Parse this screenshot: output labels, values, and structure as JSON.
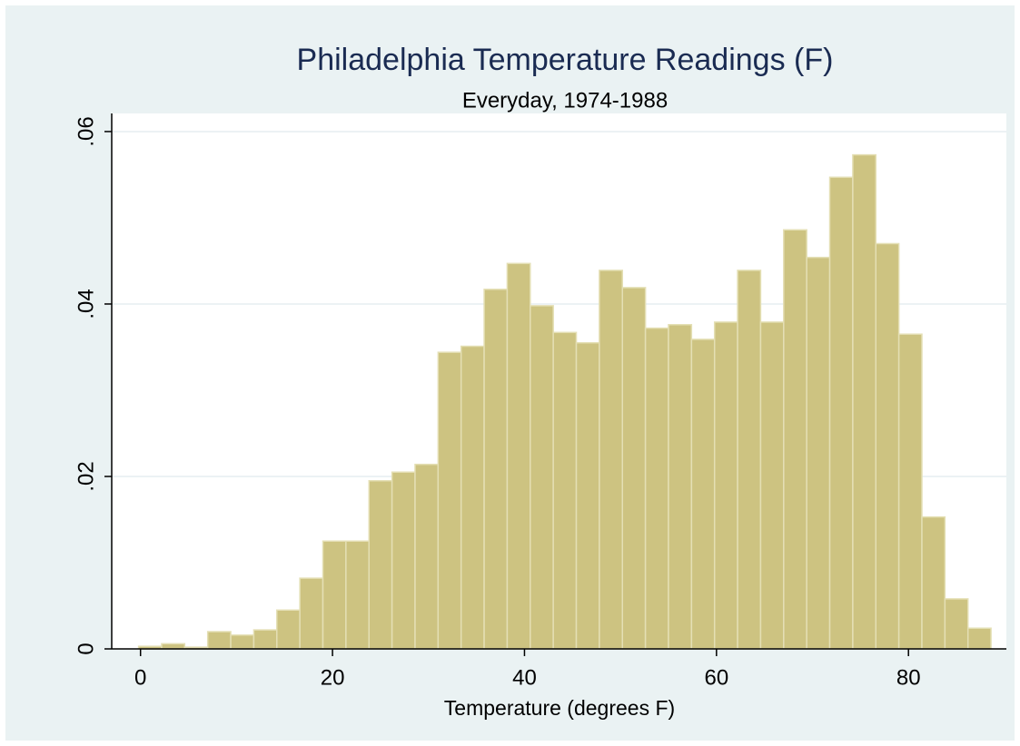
{
  "chart_data": {
    "type": "histogram",
    "title": "Philadelphia Temperature Readings (F)",
    "subtitle": "Everyday, 1974-1988",
    "x_label": "Temperature (degrees F)",
    "bins": [
      -0.2,
      2.2,
      4.6,
      7.0,
      9.4,
      11.8,
      14.2,
      16.6,
      19.0,
      21.4,
      23.8,
      26.2,
      28.6,
      31.0,
      33.4,
      35.8,
      38.2,
      40.6,
      43.0,
      45.4,
      47.8,
      50.2,
      52.6,
      55.0,
      57.4,
      59.8,
      62.2,
      64.6,
      67.0,
      69.4,
      71.8,
      74.2,
      76.6,
      79.0,
      81.4,
      83.8,
      86.2,
      88.6
    ],
    "values": [
      0.0003,
      0.0006,
      0.0002,
      0.002,
      0.0016,
      0.0022,
      0.0045,
      0.0082,
      0.0125,
      0.0125,
      0.0195,
      0.0205,
      0.0214,
      0.0344,
      0.0351,
      0.0417,
      0.0447,
      0.0398,
      0.0367,
      0.0355,
      0.0439,
      0.0419,
      0.0372,
      0.0376,
      0.0359,
      0.0379,
      0.0439,
      0.0379,
      0.0486,
      0.0454,
      0.0547,
      0.0573,
      0.047,
      0.0365,
      0.0153,
      0.0058,
      0.0024
    ],
    "color": "#cdc381",
    "xlim": [
      -3,
      90.2
    ],
    "ylim": [
      0,
      0.0621
    ],
    "xticks": [
      0,
      20,
      40,
      60,
      80
    ],
    "yticks": [
      0,
      {
        "value": 0.02,
        "label": ".02"
      },
      {
        "value": 0.04,
        "label": ".04"
      },
      {
        "value": 0.06,
        "label": ".06"
      }
    ],
    "grid": true
  }
}
